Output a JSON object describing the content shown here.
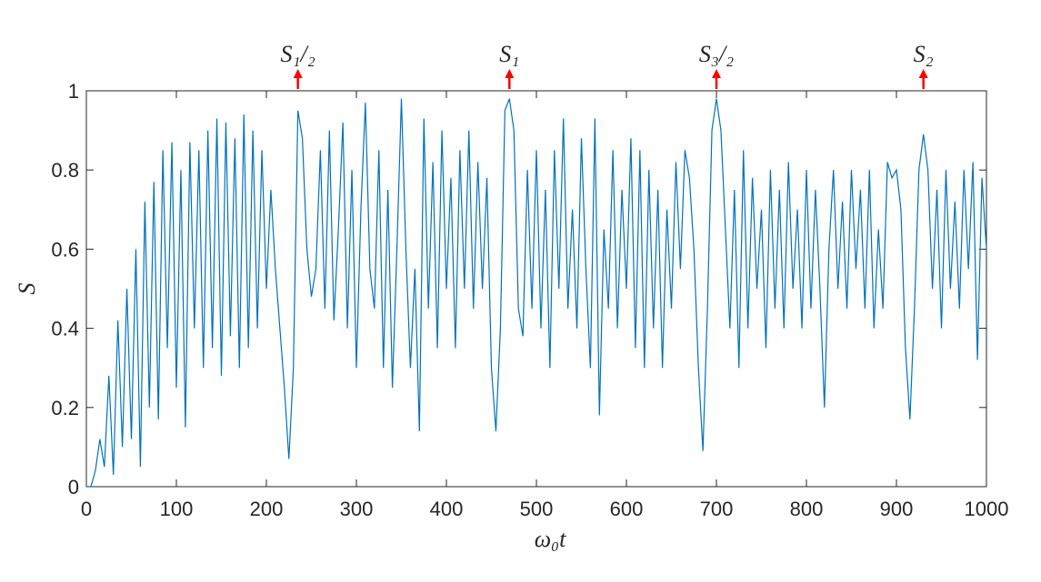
{
  "chart_data": {
    "type": "line",
    "xlabel": "ω₀t",
    "ylabel": "S",
    "xlim": [
      0,
      1000
    ],
    "ylim": [
      0,
      1
    ],
    "xticks": [
      0,
      100,
      200,
      300,
      400,
      500,
      600,
      700,
      800,
      900,
      1000
    ],
    "yticks": [
      0,
      0.2,
      0.4,
      0.6,
      0.8,
      1
    ],
    "annotations": [
      {
        "x": 235,
        "text": "S₁/₂"
      },
      {
        "x": 470,
        "text": "S₁"
      },
      {
        "x": 700,
        "text": "S₃/₂"
      },
      {
        "x": 930,
        "text": "S₂"
      }
    ],
    "annotation_color": "#ff0000",
    "x": [
      0,
      5,
      10,
      15,
      20,
      25,
      30,
      35,
      40,
      45,
      50,
      55,
      60,
      65,
      70,
      75,
      80,
      85,
      90,
      95,
      100,
      105,
      110,
      115,
      120,
      125,
      130,
      135,
      140,
      145,
      150,
      155,
      160,
      165,
      170,
      175,
      180,
      185,
      190,
      195,
      200,
      205,
      210,
      215,
      220,
      225,
      230,
      235,
      240,
      245,
      250,
      255,
      260,
      265,
      270,
      275,
      280,
      285,
      290,
      295,
      300,
      305,
      310,
      315,
      320,
      325,
      330,
      335,
      340,
      345,
      350,
      355,
      360,
      365,
      370,
      375,
      380,
      385,
      390,
      395,
      400,
      405,
      410,
      415,
      420,
      425,
      430,
      435,
      440,
      445,
      450,
      455,
      460,
      465,
      470,
      475,
      480,
      485,
      490,
      495,
      500,
      505,
      510,
      515,
      520,
      525,
      530,
      535,
      540,
      545,
      550,
      555,
      560,
      565,
      570,
      575,
      580,
      585,
      590,
      595,
      600,
      605,
      610,
      615,
      620,
      625,
      630,
      635,
      640,
      645,
      650,
      655,
      660,
      665,
      670,
      675,
      680,
      685,
      690,
      695,
      700,
      705,
      710,
      715,
      720,
      725,
      730,
      735,
      740,
      745,
      750,
      755,
      760,
      765,
      770,
      775,
      780,
      785,
      790,
      795,
      800,
      805,
      810,
      815,
      820,
      825,
      830,
      835,
      840,
      845,
      850,
      855,
      860,
      865,
      870,
      875,
      880,
      885,
      890,
      895,
      900,
      905,
      910,
      915,
      920,
      925,
      930,
      935,
      940,
      945,
      950,
      955,
      960,
      965,
      970,
      975,
      980,
      985,
      990,
      995,
      1000
    ],
    "series": [
      {
        "color": "#0072bd",
        "values": [
          0,
          0,
          0.04,
          0.12,
          0.05,
          0.28,
          0.03,
          0.42,
          0.1,
          0.5,
          0.12,
          0.6,
          0.05,
          0.72,
          0.2,
          0.77,
          0.17,
          0.85,
          0.35,
          0.87,
          0.25,
          0.8,
          0.15,
          0.87,
          0.4,
          0.85,
          0.3,
          0.9,
          0.35,
          0.93,
          0.28,
          0.92,
          0.38,
          0.88,
          0.3,
          0.94,
          0.35,
          0.9,
          0.4,
          0.85,
          0.5,
          0.75,
          0.55,
          0.4,
          0.25,
          0.07,
          0.3,
          0.95,
          0.88,
          0.6,
          0.48,
          0.55,
          0.85,
          0.45,
          0.9,
          0.42,
          0.65,
          0.92,
          0.4,
          0.8,
          0.3,
          0.7,
          0.97,
          0.55,
          0.45,
          0.85,
          0.3,
          0.75,
          0.25,
          0.6,
          0.98,
          0.6,
          0.3,
          0.55,
          0.14,
          0.93,
          0.45,
          0.82,
          0.35,
          0.9,
          0.5,
          0.78,
          0.35,
          0.85,
          0.5,
          0.9,
          0.45,
          0.82,
          0.5,
          0.78,
          0.3,
          0.14,
          0.4,
          0.95,
          0.98,
          0.9,
          0.45,
          0.38,
          0.8,
          0.45,
          0.85,
          0.4,
          0.75,
          0.3,
          0.85,
          0.5,
          0.93,
          0.45,
          0.7,
          0.4,
          0.88,
          0.55,
          0.3,
          0.93,
          0.18,
          0.65,
          0.45,
          0.85,
          0.4,
          0.75,
          0.5,
          0.88,
          0.35,
          0.85,
          0.3,
          0.8,
          0.4,
          0.75,
          0.3,
          0.7,
          0.45,
          0.82,
          0.55,
          0.85,
          0.78,
          0.6,
          0.3,
          0.09,
          0.45,
          0.9,
          0.98,
          0.9,
          0.65,
          0.4,
          0.75,
          0.3,
          0.85,
          0.4,
          0.78,
          0.5,
          0.7,
          0.35,
          0.8,
          0.45,
          0.75,
          0.4,
          0.82,
          0.5,
          0.7,
          0.4,
          0.8,
          0.45,
          0.75,
          0.5,
          0.2,
          0.6,
          0.8,
          0.5,
          0.72,
          0.45,
          0.8,
          0.55,
          0.75,
          0.45,
          0.8,
          0.4,
          0.65,
          0.45,
          0.82,
          0.78,
          0.8,
          0.7,
          0.35,
          0.17,
          0.45,
          0.8,
          0.89,
          0.8,
          0.5,
          0.75,
          0.4,
          0.8,
          0.5,
          0.72,
          0.45,
          0.8,
          0.55,
          0.82,
          0.32,
          0.78,
          0.6
        ]
      }
    ]
  }
}
